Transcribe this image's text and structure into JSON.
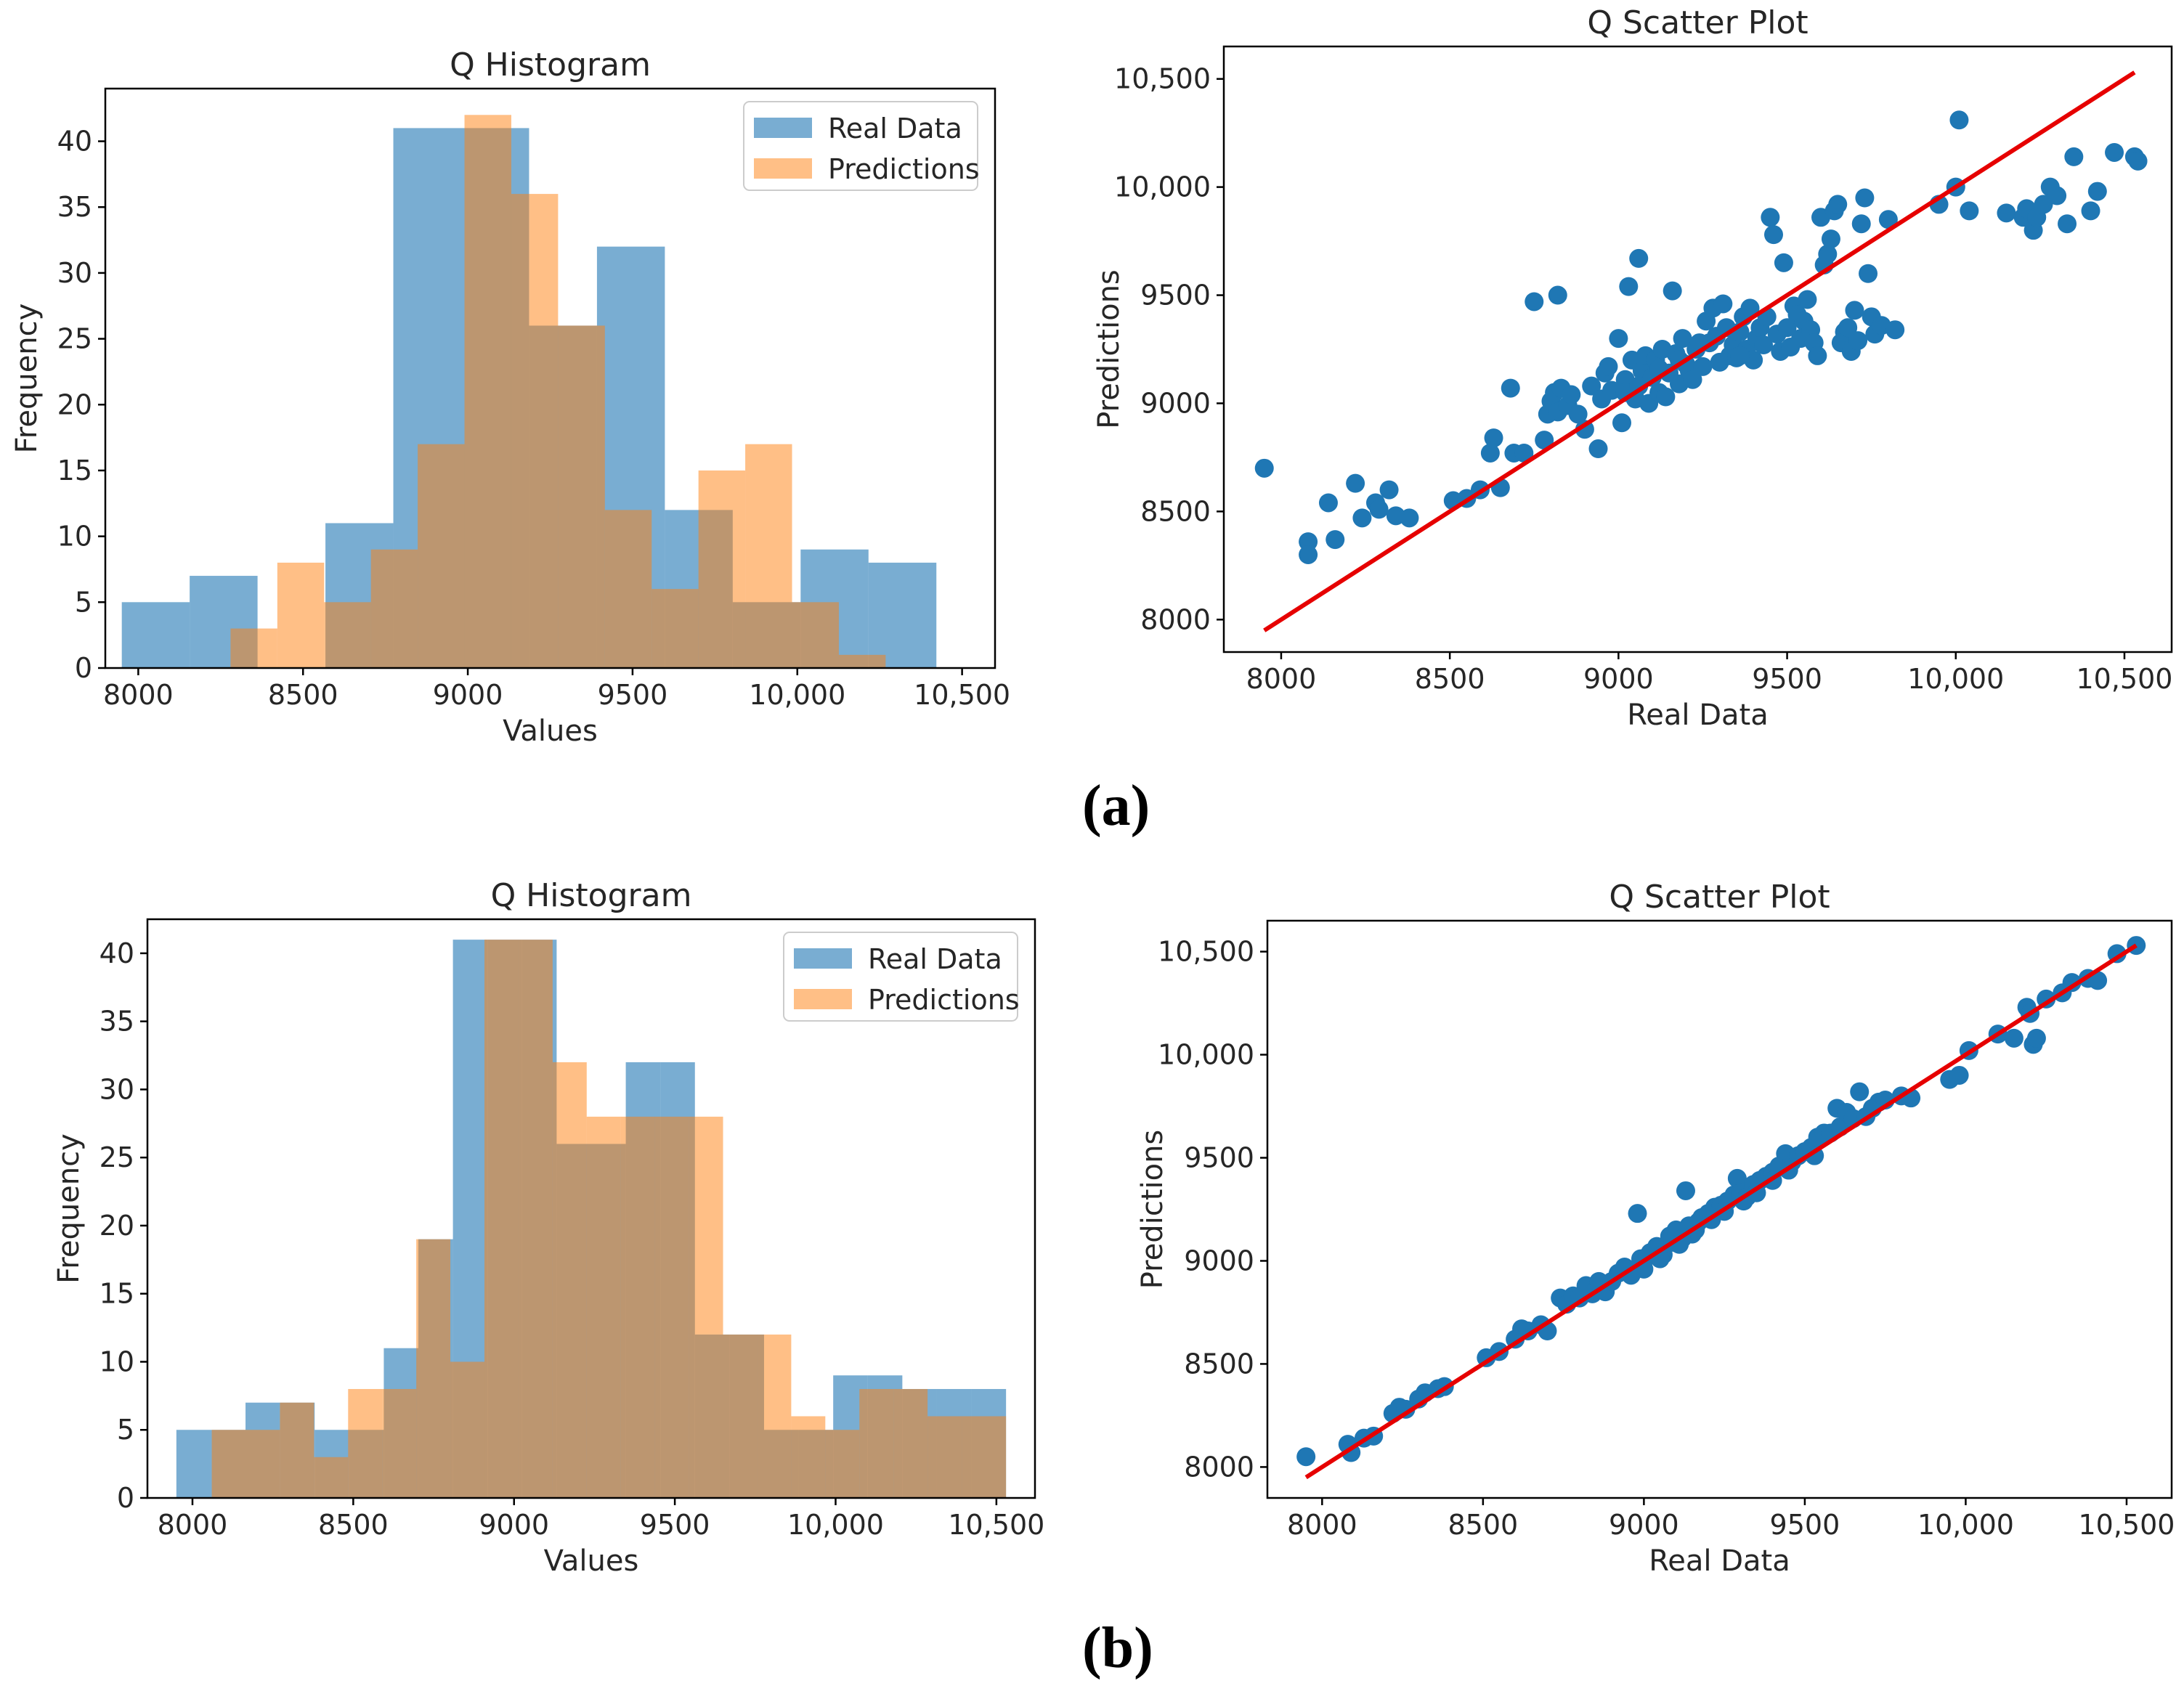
{
  "figure": {
    "panel_labels": [
      "(a)",
      "(b)"
    ],
    "colors": {
      "real": "#1f77b4",
      "predictions": "#ff7f0e",
      "overlap": "#d39d73",
      "line": "#e60000",
      "axis": "#000000"
    }
  },
  "chart_data": [
    {
      "id": "a-hist",
      "type": "bar",
      "subtype": "histogram",
      "title": "Q Histogram",
      "xlabel": "Values",
      "ylabel": "Frequency",
      "xlim": [
        7900,
        10600
      ],
      "ylim": [
        0,
        44
      ],
      "xticks": [
        8000,
        8500,
        9000,
        9500,
        10000,
        10500
      ],
      "xtick_labels": [
        "8000",
        "8500",
        "9000",
        "9500",
        "10,000",
        "10,500"
      ],
      "yticks": [
        0,
        5,
        10,
        15,
        20,
        25,
        30,
        35,
        40
      ],
      "legend": {
        "position": "top-right",
        "entries": [
          "Real Data",
          "Predictions"
        ]
      },
      "series": [
        {
          "name": "Real Data",
          "edges": [
            7950,
            8156,
            8362,
            8568,
            8774,
            8980,
            9186,
            9392,
            9598,
            9804,
            10010,
            10216,
            10422
          ],
          "counts": [
            5,
            7,
            0,
            11,
            41,
            41,
            26,
            32,
            12,
            5,
            9,
            8
          ]
        },
        {
          "name": "Predictions",
          "edges": [
            8280,
            8422,
            8564,
            8706,
            8848,
            8990,
            9132,
            9274,
            9416,
            9558,
            9700,
            9842,
            9984,
            10126,
            10268
          ],
          "counts": [
            3,
            8,
            5,
            9,
            17,
            42,
            36,
            26,
            12,
            6,
            15,
            17,
            5,
            1
          ]
        }
      ]
    },
    {
      "id": "a-scatter",
      "type": "scatter",
      "title": "Q Scatter Plot",
      "xlabel": "Real Data",
      "ylabel": "Predictions",
      "xlim": [
        7830,
        10640
      ],
      "ylim": [
        7850,
        10650
      ],
      "xticks": [
        8000,
        8500,
        9000,
        9500,
        10000,
        10500
      ],
      "xtick_labels": [
        "8000",
        "8500",
        "9000",
        "9500",
        "10,000",
        "10,500"
      ],
      "yticks": [
        8000,
        8500,
        9000,
        9500,
        10000,
        10500
      ],
      "ytick_labels": [
        "8000",
        "8500",
        "9000",
        "9500",
        "10,000",
        "10,500"
      ],
      "line": {
        "x": [
          7950,
          10530
        ],
        "y": [
          7950,
          10530
        ]
      },
      "points": [
        [
          7950,
          8700
        ],
        [
          8080,
          8360
        ],
        [
          8080,
          8300
        ],
        [
          8140,
          8540
        ],
        [
          8160,
          8370
        ],
        [
          8220,
          8630
        ],
        [
          8240,
          8470
        ],
        [
          8280,
          8540
        ],
        [
          8290,
          8510
        ],
        [
          8320,
          8600
        ],
        [
          8340,
          8480
        ],
        [
          8380,
          8470
        ],
        [
          8510,
          8550
        ],
        [
          8550,
          8560
        ],
        [
          8590,
          8600
        ],
        [
          8620,
          8770
        ],
        [
          8630,
          8840
        ],
        [
          8650,
          8610
        ],
        [
          8680,
          9070
        ],
        [
          8690,
          8770
        ],
        [
          8720,
          8770
        ],
        [
          8750,
          9470
        ],
        [
          8780,
          8830
        ],
        [
          8790,
          8950
        ],
        [
          8800,
          9010
        ],
        [
          8810,
          9050
        ],
        [
          8820,
          9500
        ],
        [
          8820,
          8960
        ],
        [
          8830,
          9070
        ],
        [
          8850,
          8990
        ],
        [
          8860,
          9040
        ],
        [
          8880,
          8950
        ],
        [
          8900,
          8880
        ],
        [
          8920,
          9080
        ],
        [
          8940,
          8790
        ],
        [
          8950,
          9020
        ],
        [
          8960,
          9140
        ],
        [
          8970,
          9170
        ],
        [
          8980,
          9060
        ],
        [
          9000,
          9300
        ],
        [
          9010,
          8910
        ],
        [
          9020,
          9110
        ],
        [
          9030,
          9540
        ],
        [
          9040,
          9200
        ],
        [
          9050,
          9020
        ],
        [
          9060,
          9670
        ],
        [
          9070,
          9150
        ],
        [
          9080,
          9220
        ],
        [
          9090,
          9000
        ],
        [
          9100,
          9120
        ],
        [
          9110,
          9200
        ],
        [
          9120,
          9050
        ],
        [
          9130,
          9250
        ],
        [
          9140,
          9030
        ],
        [
          9150,
          9140
        ],
        [
          9160,
          9520
        ],
        [
          9170,
          9230
        ],
        [
          9180,
          9090
        ],
        [
          9190,
          9300
        ],
        [
          9200,
          9180
        ],
        [
          9210,
          9150
        ],
        [
          9220,
          9110
        ],
        [
          9230,
          9250
        ],
        [
          9250,
          9170
        ],
        [
          9260,
          9380
        ],
        [
          9270,
          9280
        ],
        [
          9280,
          9440
        ],
        [
          9290,
          9310
        ],
        [
          9300,
          9190
        ],
        [
          9310,
          9460
        ],
        [
          9320,
          9350
        ],
        [
          9330,
          9220
        ],
        [
          9340,
          9270
        ],
        [
          9350,
          9210
        ],
        [
          9360,
          9330
        ],
        [
          9370,
          9400
        ],
        [
          9380,
          9250
        ],
        [
          9390,
          9440
        ],
        [
          9400,
          9200
        ],
        [
          9410,
          9300
        ],
        [
          9420,
          9350
        ],
        [
          9430,
          9270
        ],
        [
          9440,
          9400
        ],
        [
          9450,
          9860
        ],
        [
          9460,
          9780
        ],
        [
          9470,
          9320
        ],
        [
          9480,
          9240
        ],
        [
          9490,
          9650
        ],
        [
          9500,
          9350
        ],
        [
          9510,
          9260
        ],
        [
          9520,
          9450
        ],
        [
          9530,
          9410
        ],
        [
          9540,
          9300
        ],
        [
          9550,
          9380
        ],
        [
          9560,
          9480
        ],
        [
          9570,
          9340
        ],
        [
          9580,
          9280
        ],
        [
          9590,
          9220
        ],
        [
          9600,
          9860
        ],
        [
          9610,
          9640
        ],
        [
          9620,
          9690
        ],
        [
          9630,
          9760
        ],
        [
          9640,
          9890
        ],
        [
          9650,
          9920
        ],
        [
          9660,
          9280
        ],
        [
          9670,
          9330
        ],
        [
          9680,
          9350
        ],
        [
          9690,
          9240
        ],
        [
          9700,
          9430
        ],
        [
          9710,
          9290
        ],
        [
          9720,
          9830
        ],
        [
          9730,
          9950
        ],
        [
          9740,
          9600
        ],
        [
          9750,
          9400
        ],
        [
          9760,
          9320
        ],
        [
          9780,
          9360
        ],
        [
          9800,
          9850
        ],
        [
          9820,
          9340
        ],
        [
          9950,
          9920
        ],
        [
          10000,
          10000
        ],
        [
          10010,
          10310
        ],
        [
          10040,
          9890
        ],
        [
          10150,
          9880
        ],
        [
          10200,
          9860
        ],
        [
          10210,
          9900
        ],
        [
          10230,
          9800
        ],
        [
          10240,
          9860
        ],
        [
          10260,
          9920
        ],
        [
          10280,
          10000
        ],
        [
          10300,
          9960
        ],
        [
          10330,
          9830
        ],
        [
          10350,
          10140
        ],
        [
          10400,
          9890
        ],
        [
          10420,
          9980
        ],
        [
          10470,
          10160
        ],
        [
          10530,
          10140
        ],
        [
          10540,
          10120
        ],
        [
          9020,
          9050
        ],
        [
          9060,
          9080
        ],
        [
          9120,
          9160
        ],
        [
          9180,
          9200
        ],
        [
          9240,
          9280
        ],
        [
          9360,
          9220
        ]
      ]
    },
    {
      "id": "b-hist",
      "type": "bar",
      "subtype": "histogram",
      "title": "Q Histogram",
      "xlabel": "Values",
      "ylabel": "Frequency",
      "xlim": [
        7860,
        10620
      ],
      "ylim": [
        0,
        42.5
      ],
      "xticks": [
        8000,
        8500,
        9000,
        9500,
        10000,
        10500
      ],
      "xtick_labels": [
        "8000",
        "8500",
        "9000",
        "9500",
        "10,000",
        "10,500"
      ],
      "yticks": [
        0,
        5,
        10,
        15,
        20,
        25,
        30,
        35,
        40
      ],
      "legend": {
        "position": "top-right",
        "entries": [
          "Real Data",
          "Predictions"
        ]
      },
      "series": [
        {
          "name": "Real Data",
          "edges": [
            7950,
            8057.5,
            8165,
            8272.5,
            8380,
            8487.5,
            8595,
            8702.5,
            8810,
            8917.5,
            9025,
            9132.5,
            9240,
            9347.5,
            9455,
            9562.5,
            9670,
            9777.5,
            9885,
            9992.5,
            10100,
            10207.5,
            10315,
            10422.5,
            10530
          ],
          "counts": [
            5,
            5,
            7,
            7,
            5,
            5,
            11,
            19,
            41,
            41,
            41,
            26,
            26,
            32,
            32,
            12,
            12,
            5,
            5,
            9,
            9,
            8,
            8,
            8
          ]
        },
        {
          "name": "Predictions",
          "edges": [
            8060,
            8166,
            8272,
            8378,
            8484,
            8590,
            8696,
            8802,
            8908,
            9014,
            9120,
            9226,
            9332,
            9438,
            9544,
            9650,
            9756,
            9862,
            9968,
            10074,
            10180,
            10286,
            10392,
            10498,
            10530
          ],
          "counts": [
            5,
            5,
            7,
            3,
            8,
            8,
            19,
            10,
            41,
            41,
            32,
            28,
            28,
            28,
            28,
            12,
            12,
            6,
            5,
            8,
            8,
            6,
            6,
            6
          ]
        }
      ]
    },
    {
      "id": "b-scatter",
      "type": "scatter",
      "title": "Q Scatter Plot",
      "xlabel": "Real Data",
      "ylabel": "Predictions",
      "xlim": [
        7830,
        10640
      ],
      "ylim": [
        7850,
        10650
      ],
      "xticks": [
        8000,
        8500,
        9000,
        9500,
        10000,
        10500
      ],
      "xtick_labels": [
        "8000",
        "8500",
        "9000",
        "9500",
        "10,000",
        "10,500"
      ],
      "yticks": [
        8000,
        8500,
        9000,
        9500,
        10000,
        10500
      ],
      "ytick_labels": [
        "8000",
        "8500",
        "9000",
        "9500",
        "10,000",
        "10,500"
      ],
      "line": {
        "x": [
          7950,
          10530
        ],
        "y": [
          7950,
          10530
        ]
      },
      "points": [
        [
          7950,
          8050
        ],
        [
          8080,
          8110
        ],
        [
          8090,
          8070
        ],
        [
          8130,
          8140
        ],
        [
          8160,
          8150
        ],
        [
          8220,
          8260
        ],
        [
          8240,
          8290
        ],
        [
          8260,
          8280
        ],
        [
          8300,
          8330
        ],
        [
          8320,
          8360
        ],
        [
          8360,
          8380
        ],
        [
          8380,
          8390
        ],
        [
          8510,
          8530
        ],
        [
          8550,
          8560
        ],
        [
          8600,
          8620
        ],
        [
          8620,
          8670
        ],
        [
          8640,
          8660
        ],
        [
          8680,
          8690
        ],
        [
          8700,
          8660
        ],
        [
          8740,
          8820
        ],
        [
          8760,
          8790
        ],
        [
          8780,
          8830
        ],
        [
          8800,
          8820
        ],
        [
          8820,
          8880
        ],
        [
          8840,
          8840
        ],
        [
          8860,
          8900
        ],
        [
          8880,
          8850
        ],
        [
          8900,
          8900
        ],
        [
          8920,
          8940
        ],
        [
          8940,
          8970
        ],
        [
          8960,
          8930
        ],
        [
          8980,
          9230
        ],
        [
          8990,
          9010
        ],
        [
          9000,
          8960
        ],
        [
          9020,
          9040
        ],
        [
          9040,
          9070
        ],
        [
          9060,
          9030
        ],
        [
          9080,
          9120
        ],
        [
          9090,
          9090
        ],
        [
          9100,
          9150
        ],
        [
          9120,
          9110
        ],
        [
          9130,
          9340
        ],
        [
          9140,
          9170
        ],
        [
          9150,
          9130
        ],
        [
          9170,
          9190
        ],
        [
          9180,
          9210
        ],
        [
          9200,
          9230
        ],
        [
          9220,
          9260
        ],
        [
          9240,
          9270
        ],
        [
          9260,
          9290
        ],
        [
          9280,
          9320
        ],
        [
          9290,
          9400
        ],
        [
          9300,
          9330
        ],
        [
          9320,
          9310
        ],
        [
          9340,
          9370
        ],
        [
          9360,
          9390
        ],
        [
          9380,
          9410
        ],
        [
          9400,
          9430
        ],
        [
          9420,
          9460
        ],
        [
          9440,
          9520
        ],
        [
          9460,
          9480
        ],
        [
          9480,
          9510
        ],
        [
          9500,
          9530
        ],
        [
          9520,
          9550
        ],
        [
          9540,
          9600
        ],
        [
          9560,
          9620
        ],
        [
          9580,
          9620
        ],
        [
          9600,
          9740
        ],
        [
          9610,
          9650
        ],
        [
          9630,
          9720
        ],
        [
          9650,
          9690
        ],
        [
          9670,
          9820
        ],
        [
          9690,
          9700
        ],
        [
          9710,
          9740
        ],
        [
          9730,
          9770
        ],
        [
          9750,
          9780
        ],
        [
          9800,
          9800
        ],
        [
          9830,
          9790
        ],
        [
          9950,
          9880
        ],
        [
          9980,
          9900
        ],
        [
          10010,
          10020
        ],
        [
          10100,
          10100
        ],
        [
          10150,
          10080
        ],
        [
          10190,
          10230
        ],
        [
          10200,
          10200
        ],
        [
          10210,
          10050
        ],
        [
          10220,
          10080
        ],
        [
          10250,
          10270
        ],
        [
          10300,
          10300
        ],
        [
          10330,
          10350
        ],
        [
          10380,
          10370
        ],
        [
          10410,
          10360
        ],
        [
          10470,
          10490
        ],
        [
          10530,
          10530
        ],
        [
          8960,
          8950
        ],
        [
          9010,
          9020
        ],
        [
          9050,
          9010
        ],
        [
          9110,
          9080
        ],
        [
          9160,
          9150
        ],
        [
          9210,
          9200
        ],
        [
          9250,
          9240
        ],
        [
          9310,
          9290
        ],
        [
          9350,
          9330
        ],
        [
          9400,
          9390
        ],
        [
          9450,
          9440
        ],
        [
          9530,
          9510
        ]
      ]
    }
  ]
}
